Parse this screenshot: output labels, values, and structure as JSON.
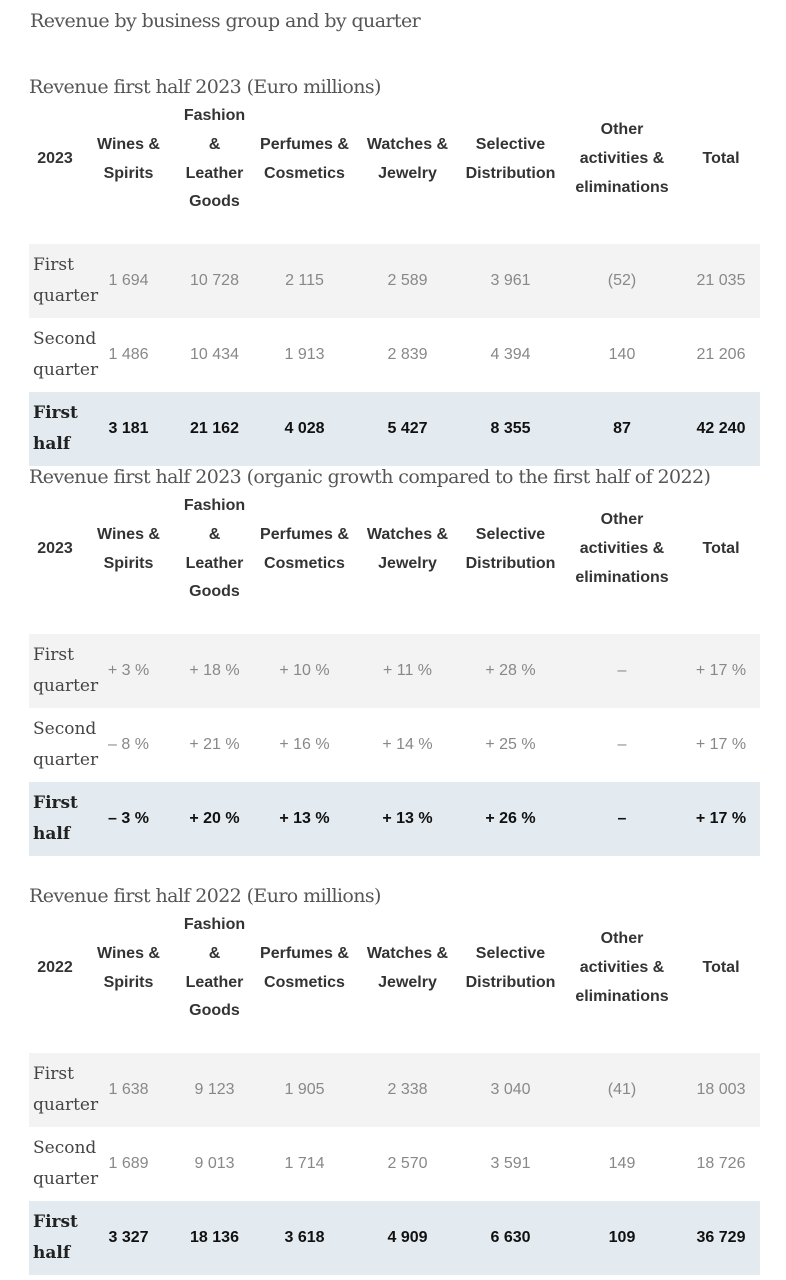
{
  "page_title": "Revenue by business group and by quarter",
  "columns": [
    "Wines & Spirits",
    "Fashion & Leather Goods",
    "Perfumes & Cosmetics",
    "Watches & Jewelry",
    "Selective Distribution",
    "Other activities & eliminations",
    "Total"
  ],
  "column_lines": [
    [
      "Wines &",
      "Spirits"
    ],
    [
      "Fashion &",
      "Leather",
      "Goods"
    ],
    [
      "Perfumes &",
      "Cosmetics"
    ],
    [
      "Watches &",
      "Jewelry"
    ],
    [
      "Selective",
      "Distribution"
    ],
    [
      "Other",
      "activities &",
      "eliminations"
    ],
    [
      "Total"
    ]
  ],
  "tables": [
    {
      "title": "Revenue first half 2023 (Euro millions)",
      "year": "2023",
      "rows": [
        {
          "label_lines": [
            "First",
            "quarter"
          ],
          "values": [
            "1 694",
            "10 728",
            "2 115",
            "2 589",
            "3 961",
            "(52)",
            "21 035"
          ]
        },
        {
          "label_lines": [
            "Second",
            "quarter"
          ],
          "values": [
            "1 486",
            "10 434",
            "1 913",
            "2 839",
            "4 394",
            "140",
            "21 206"
          ]
        },
        {
          "label_lines": [
            "First",
            "half"
          ],
          "values": [
            "3 181",
            "21 162",
            "4 028",
            "5 427",
            "8 355",
            "87",
            "42 240"
          ]
        }
      ]
    },
    {
      "title": "Revenue first half 2023 (organic growth compared to the first half of  2022)",
      "year": "2023",
      "rows": [
        {
          "label_lines": [
            "First",
            "quarter"
          ],
          "values": [
            "+ 3 %",
            "+ 18 %",
            "+ 10 %",
            "+ 11 %",
            "+ 28 %",
            "–",
            "+ 17 %"
          ]
        },
        {
          "label_lines": [
            "Second",
            "quarter"
          ],
          "values": [
            "– 8 %",
            "+ 21 %",
            "+ 16 %",
            "+ 14 %",
            "+ 25 %",
            "–",
            "+ 17 %"
          ]
        },
        {
          "label_lines": [
            "First",
            "half"
          ],
          "values": [
            "– 3 %",
            "+ 20 %",
            "+ 13 %",
            "+ 13 %",
            "+ 26 %",
            "–",
            "+ 17 %"
          ]
        }
      ]
    },
    {
      "title": "Revenue first half 2022 (Euro millions)",
      "year": "2022",
      "rows": [
        {
          "label_lines": [
            "First",
            "quarter"
          ],
          "values": [
            "1 638",
            "9 123",
            "1 905",
            "2 338",
            "3 040",
            "(41)",
            "18 003"
          ]
        },
        {
          "label_lines": [
            "Second",
            "quarter"
          ],
          "values": [
            "1 689",
            "9 013",
            "1 714",
            "2 570",
            "3 591",
            "149",
            "18 726"
          ]
        },
        {
          "label_lines": [
            "First",
            "half"
          ],
          "values": [
            "3 327",
            "18 136",
            "3 618",
            "4 909",
            "6 630",
            "109",
            "36 729"
          ]
        }
      ]
    }
  ]
}
